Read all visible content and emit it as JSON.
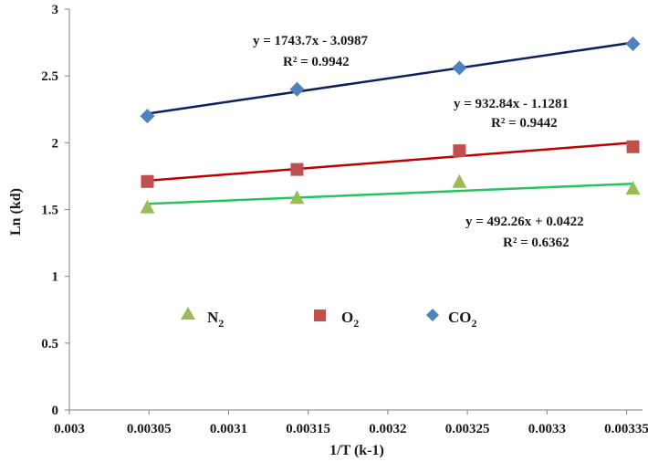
{
  "chart_data": {
    "type": "scatter",
    "xlabel": "1/T (k-1)",
    "ylabel": "Ln (kd)",
    "xlim": [
      0.003,
      0.00336
    ],
    "ylim": [
      0,
      3
    ],
    "xticks": [
      "0.003",
      "0.00305",
      "0.0031",
      "0.00315",
      "0.0032",
      "0.00325",
      "0.0033",
      "0.00335"
    ],
    "yticks": [
      "0",
      "0.5",
      "1",
      "1.5",
      "2",
      "2.5",
      "3"
    ],
    "grid": false,
    "legend_position": "center",
    "series": [
      {
        "name": "N",
        "subscript": "2",
        "marker": "triangle",
        "color": "#9bbb59",
        "line_color": "#22c55e",
        "x": [
          0.003049,
          0.003143,
          0.003245,
          0.003354
        ],
        "y": [
          1.52,
          1.59,
          1.71,
          1.66
        ],
        "trendline": {
          "slope": 492.26,
          "intercept": 0.0422,
          "equation": "y = 492.26x + 0.0422",
          "r2": "R² = 0.6362"
        }
      },
      {
        "name": "O",
        "subscript": "2",
        "marker": "square",
        "color": "#c0504d",
        "line_color": "#c00000",
        "x": [
          0.003049,
          0.003143,
          0.003245,
          0.003354
        ],
        "y": [
          1.71,
          1.8,
          1.94,
          1.97
        ],
        "trendline": {
          "slope": 932.84,
          "intercept": -1.1281,
          "equation": "y = 932.84x - 1.1281",
          "r2": "R² = 0.9442"
        }
      },
      {
        "name": "CO",
        "subscript": "2",
        "marker": "diamond",
        "color": "#4f81bd",
        "line_color": "#0d1f5c",
        "x": [
          0.003049,
          0.003143,
          0.003245,
          0.003354
        ],
        "y": [
          2.2,
          2.4,
          2.56,
          2.74
        ],
        "trendline": {
          "slope": 1743.7,
          "intercept": -3.0987,
          "equation": "y = 1743.7x - 3.0987",
          "r2": "R² = 0.9942"
        }
      }
    ]
  }
}
